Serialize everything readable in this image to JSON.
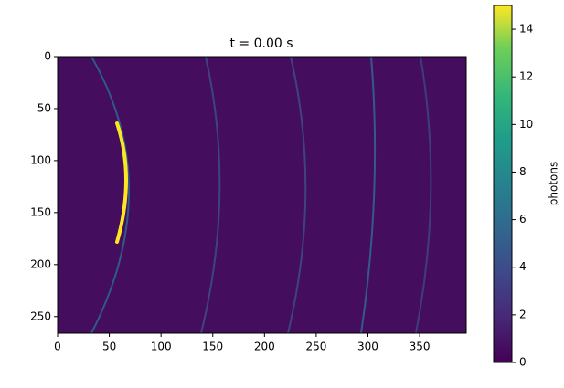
{
  "chart_data": {
    "type": "image",
    "title": "t = 0.00 s",
    "xlim": [
      0,
      395
    ],
    "xticks": [
      0,
      50,
      100,
      150,
      200,
      250,
      300,
      350
    ],
    "ylim": [
      266,
      0
    ],
    "yticks": [
      0,
      50,
      100,
      150,
      200,
      250
    ],
    "colorbar": {
      "label": "photons",
      "lim": [
        0,
        15
      ],
      "ticks": [
        0,
        2,
        4,
        6,
        8,
        10,
        12,
        14
      ]
    }
  }
}
